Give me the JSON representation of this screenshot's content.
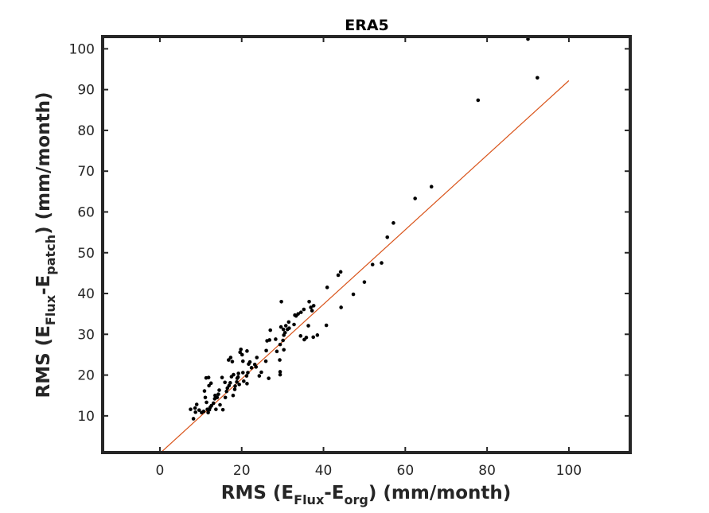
{
  "chart_data": {
    "type": "scatter",
    "title": "ERA5",
    "xlabel": {
      "prefix": "RMS (E",
      "sub1": "Flux",
      "mid": "-E",
      "sub2": "org",
      "suffix": ") (mm/month)"
    },
    "ylabel": {
      "prefix": "RMS (E",
      "sub1": "Flux",
      "mid": "-E",
      "sub2": "patch",
      "suffix": ") (mm/month)"
    },
    "xlim": [
      -14,
      115
    ],
    "ylim": [
      1,
      103
    ],
    "xticks": [
      0,
      20,
      40,
      60,
      80,
      100
    ],
    "yticks": [
      10,
      20,
      30,
      40,
      50,
      60,
      70,
      80,
      90,
      100
    ],
    "grid": false,
    "box": true,
    "colors": {
      "points": "#000000",
      "fit_line": "#d95319",
      "axes": "#262626"
    },
    "fit_line": {
      "x": [
        0,
        100
      ],
      "y": [
        0.8,
        92.2
      ]
    },
    "points": [
      [
        92.3,
        92.9
      ],
      [
        77.8,
        87.4
      ],
      [
        90.0,
        102.4
      ],
      [
        66.4,
        66.2
      ],
      [
        62.4,
        63.3
      ],
      [
        57.1,
        57.3
      ],
      [
        55.6,
        53.8
      ],
      [
        54.2,
        47.5
      ],
      [
        52.0,
        47.1
      ],
      [
        50.0,
        42.8
      ],
      [
        47.3,
        39.8
      ],
      [
        44.2,
        45.3
      ],
      [
        43.6,
        44.5
      ],
      [
        44.3,
        36.6
      ],
      [
        40.9,
        41.5
      ],
      [
        40.7,
        32.2
      ],
      [
        38.5,
        29.8
      ],
      [
        37.5,
        29.3
      ],
      [
        37.6,
        37.0
      ],
      [
        37.2,
        35.8
      ],
      [
        36.9,
        36.6
      ],
      [
        36.5,
        38.0
      ],
      [
        36.3,
        32.1
      ],
      [
        35.2,
        36.1
      ],
      [
        34.5,
        35.4
      ],
      [
        33.8,
        35.0
      ],
      [
        33.3,
        34.5
      ],
      [
        32.8,
        32.4
      ],
      [
        34.4,
        29.6
      ],
      [
        35.8,
        29.2
      ],
      [
        35.3,
        28.7
      ],
      [
        31.6,
        31.5
      ],
      [
        31.2,
        31.2
      ],
      [
        30.8,
        32.1
      ],
      [
        30.3,
        29.8
      ],
      [
        29.7,
        38.0
      ],
      [
        29.6,
        31.8
      ],
      [
        30.2,
        31.2
      ],
      [
        30.6,
        30.4
      ],
      [
        30.1,
        28.5
      ],
      [
        29.4,
        27.5
      ],
      [
        30.3,
        26.2
      ],
      [
        29.3,
        23.7
      ],
      [
        29.4,
        20.8
      ],
      [
        29.4,
        20.1
      ],
      [
        28.3,
        28.8
      ],
      [
        27.0,
        31.0
      ],
      [
        26.2,
        28.4
      ],
      [
        26.8,
        28.6
      ],
      [
        26.0,
        26.0
      ],
      [
        25.9,
        23.4
      ],
      [
        26.6,
        19.2
      ],
      [
        24.8,
        20.7
      ],
      [
        24.3,
        19.8
      ],
      [
        23.7,
        24.3
      ],
      [
        23.2,
        22.6
      ],
      [
        22.4,
        21.8
      ],
      [
        21.7,
        22.7
      ],
      [
        21.3,
        25.9
      ],
      [
        21.5,
        20.6
      ],
      [
        21.2,
        19.8
      ],
      [
        21.3,
        17.9
      ],
      [
        20.3,
        20.6
      ],
      [
        20.3,
        23.4
      ],
      [
        20.1,
        25.0
      ],
      [
        19.8,
        26.3
      ],
      [
        19.6,
        25.6
      ],
      [
        19.2,
        20.4
      ],
      [
        19.1,
        19.5
      ],
      [
        18.9,
        19.2
      ],
      [
        18.8,
        18.3
      ],
      [
        18.4,
        17.3
      ],
      [
        18.0,
        20.1
      ],
      [
        17.7,
        23.3
      ],
      [
        17.3,
        24.3
      ],
      [
        16.8,
        23.7
      ],
      [
        17.5,
        19.6
      ],
      [
        17.2,
        18.1
      ],
      [
        16.9,
        17.4
      ],
      [
        16.5,
        16.8
      ],
      [
        16.3,
        16.0
      ],
      [
        16.0,
        14.5
      ],
      [
        15.9,
        18.2
      ],
      [
        15.2,
        19.4
      ],
      [
        14.5,
        16.3
      ],
      [
        14.3,
        15.3
      ],
      [
        14.0,
        14.5
      ],
      [
        13.5,
        15.0
      ],
      [
        13.4,
        14.2
      ],
      [
        13.1,
        13.1
      ],
      [
        12.6,
        12.5
      ],
      [
        12.3,
        12.1
      ],
      [
        12.1,
        11.5
      ],
      [
        11.8,
        10.8
      ],
      [
        11.6,
        11.6
      ],
      [
        12.0,
        17.4
      ],
      [
        12.5,
        18.0
      ],
      [
        11.9,
        19.4
      ],
      [
        11.3,
        19.3
      ],
      [
        10.9,
        16.1
      ],
      [
        11.4,
        13.3
      ],
      [
        11.1,
        14.5
      ],
      [
        10.7,
        11.1
      ],
      [
        10.2,
        10.8
      ],
      [
        9.6,
        11.4
      ],
      [
        8.7,
        10.9
      ],
      [
        8.6,
        11.9
      ],
      [
        8.2,
        9.3
      ],
      [
        9.0,
        12.8
      ],
      [
        7.5,
        11.6
      ],
      [
        15.4,
        11.5
      ],
      [
        14.7,
        12.7
      ],
      [
        13.7,
        11.6
      ],
      [
        17.9,
        15.0
      ],
      [
        18.3,
        16.5
      ],
      [
        19.4,
        17.7
      ],
      [
        20.5,
        18.5
      ],
      [
        22.0,
        23.2
      ],
      [
        23.5,
        22.0
      ],
      [
        28.6,
        25.8
      ],
      [
        31.5,
        33.0
      ],
      [
        33.0,
        34.7
      ]
    ]
  }
}
